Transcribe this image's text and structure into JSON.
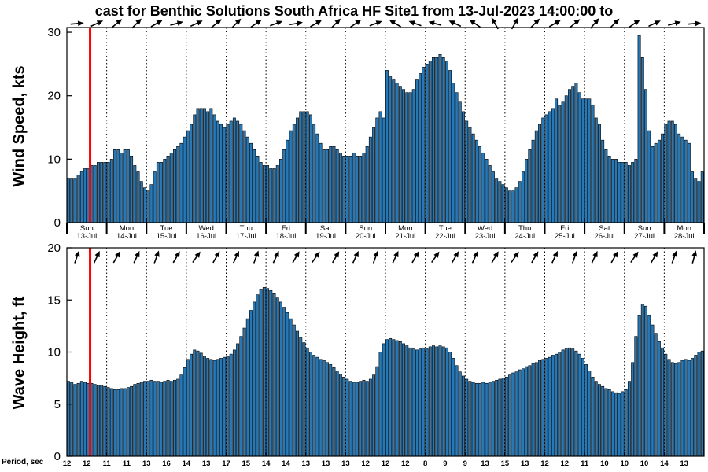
{
  "title": "cast for Benthic Solutions South Africa HF Site1 from 13-Jul-2023 14:00:00 to",
  "colors": {
    "bar_fill": "#2878b5",
    "bar_edge": "#000000",
    "now_line": "#ff0000",
    "first_day_label": "#cc0000",
    "gridline": "#000000"
  },
  "x_axis": {
    "total_hours": 384,
    "days": [
      {
        "weekday": "Sun",
        "date": "13-Jul"
      },
      {
        "weekday": "Mon",
        "date": "14-Jul"
      },
      {
        "weekday": "Tue",
        "date": "15-Jul"
      },
      {
        "weekday": "Wed",
        "date": "16-Jul"
      },
      {
        "weekday": "Thu",
        "date": "17-Jul"
      },
      {
        "weekday": "Fri",
        "date": "18-Jul"
      },
      {
        "weekday": "Sat",
        "date": "19-Jul"
      },
      {
        "weekday": "Sun",
        "date": "20-Jul"
      },
      {
        "weekday": "Mon",
        "date": "21-Jul"
      },
      {
        "weekday": "Tue",
        "date": "22-Jul"
      },
      {
        "weekday": "Wed",
        "date": "23-Jul"
      },
      {
        "weekday": "Thu",
        "date": "24-Jul"
      },
      {
        "weekday": "Fri",
        "date": "25-Jul"
      },
      {
        "weekday": "Sat",
        "date": "26-Jul"
      },
      {
        "weekday": "Sun",
        "date": "27-Jul"
      },
      {
        "weekday": "Mon",
        "date": "28-Jul"
      }
    ]
  },
  "period_axis": {
    "label": "Period, sec",
    "values": [
      12,
      12,
      11,
      11,
      13,
      16,
      14,
      13,
      17,
      15,
      14,
      14,
      13,
      13,
      13,
      12,
      12,
      12,
      8,
      9,
      9,
      13,
      15,
      13,
      12,
      12,
      11,
      10,
      10,
      10,
      14,
      13
    ]
  },
  "chart_data": [
    {
      "type": "bar",
      "panel": "wind",
      "ylabel": "Wind Speed, kts",
      "ylim": [
        0,
        30.75
      ],
      "yticks": [
        0,
        10,
        20,
        30
      ],
      "hours_per_bar": 2,
      "now_hour": 14,
      "values": [
        7,
        7,
        7,
        7.5,
        8,
        8.5,
        8.5,
        9,
        9,
        9.5,
        9.5,
        9.5,
        9.5,
        10,
        11.5,
        11.5,
        11,
        11.5,
        11.5,
        10.5,
        9,
        8,
        6.5,
        5.5,
        5,
        6,
        8,
        9.5,
        9.5,
        10,
        10.5,
        11,
        11.5,
        12,
        12.5,
        13.5,
        14.5,
        15.5,
        17,
        18,
        18,
        18,
        17.5,
        18,
        17,
        16,
        15.5,
        15,
        15.5,
        16,
        16.5,
        16,
        15.5,
        14.5,
        13.5,
        12.5,
        11.5,
        10.5,
        9.5,
        9,
        9,
        8.5,
        8.5,
        9,
        10,
        11.5,
        13,
        14.5,
        15.5,
        16.5,
        17.5,
        17.5,
        17.5,
        17,
        15.5,
        14,
        12.5,
        11.5,
        11.5,
        12,
        12,
        11.5,
        11,
        10.5,
        10.5,
        10.5,
        11,
        10.5,
        10.5,
        11,
        12,
        13.5,
        15,
        16.5,
        17.5,
        16.5,
        24,
        23,
        22.5,
        22,
        21.5,
        21,
        20.5,
        20.5,
        21,
        22.5,
        23.5,
        24.5,
        25,
        25.5,
        26,
        26,
        26.5,
        26,
        25.5,
        24,
        22,
        20.5,
        19,
        17.5,
        16,
        15,
        14,
        13,
        12,
        11,
        10,
        9,
        8,
        7,
        6.5,
        6,
        5.5,
        5,
        5,
        5.5,
        6.5,
        8,
        10,
        11.5,
        13,
        14.5,
        15.5,
        16.5,
        17,
        17.5,
        18,
        19.5,
        18.5,
        19,
        20,
        21,
        21.5,
        22,
        20.5,
        19.5,
        19.5,
        19.5,
        18.5,
        16.5,
        15.5,
        13,
        11.5,
        10.5,
        10,
        10,
        9.5,
        9.5,
        9.5,
        9,
        9.5,
        10,
        29.5,
        26,
        21,
        14.5,
        12,
        12.5,
        13,
        14,
        15.5,
        16,
        16,
        15.5,
        14,
        13.5,
        13,
        12.5,
        8,
        7,
        6.5,
        8
      ],
      "arrows_deg": [
        5,
        25,
        40,
        45,
        30,
        15,
        25,
        40,
        45,
        35,
        20,
        10,
        30,
        45,
        35,
        20,
        150,
        160,
        165,
        155,
        145,
        120,
        60,
        45,
        30,
        40,
        50,
        45,
        35,
        25,
        15,
        5
      ]
    },
    {
      "type": "bar",
      "panel": "wave",
      "ylabel": "Wave Height, ft",
      "ylim": [
        0,
        20
      ],
      "yticks": [
        0,
        5,
        10,
        15,
        20
      ],
      "hours_per_bar": 2,
      "now_hour": 14,
      "values": [
        7.2,
        7.1,
        6.9,
        7,
        7.2,
        7.1,
        7,
        7,
        6.9,
        6.8,
        6.8,
        6.7,
        6.6,
        6.5,
        6.4,
        6.4,
        6.5,
        6.5,
        6.6,
        6.7,
        6.9,
        7,
        7.1,
        7.2,
        7.2,
        7.3,
        7.2,
        7.2,
        7.1,
        7.2,
        7.3,
        7.2,
        7.3,
        7.4,
        7.8,
        8.5,
        9.3,
        9.8,
        10.2,
        10.1,
        9.9,
        9.6,
        9.4,
        9.3,
        9.2,
        9.3,
        9.4,
        9.5,
        9.6,
        9.8,
        10.2,
        10.8,
        11.5,
        12.3,
        13.2,
        14,
        14.8,
        15.5,
        16,
        16.2,
        16.1,
        15.9,
        15.6,
        15.2,
        14.8,
        14.3,
        13.8,
        13.2,
        12.6,
        12,
        11.4,
        10.9,
        10.4,
        10,
        9.7,
        9.5,
        9.3,
        9.2,
        9,
        8.8,
        8.5,
        8.2,
        7.9,
        7.6,
        7.4,
        7.2,
        7.1,
        7.1,
        7.2,
        7.3,
        7.2,
        7.4,
        7.8,
        8.6,
        10,
        10.8,
        11.2,
        11.3,
        11.2,
        11.1,
        11,
        10.8,
        10.6,
        10.4,
        10.3,
        10.2,
        10.3,
        10.4,
        10.3,
        10.5,
        10.6,
        10.5,
        10.6,
        10.5,
        10.4,
        10,
        9.4,
        8.7,
        8.1,
        7.7,
        7.4,
        7.2,
        7.1,
        7,
        7,
        7.1,
        7,
        7.1,
        7.2,
        7.3,
        7.4,
        7.5,
        7.6,
        7.8,
        8,
        8.1,
        8.3,
        8.4,
        8.6,
        8.7,
        8.9,
        9,
        9.2,
        9.3,
        9.4,
        9.5,
        9.7,
        9.8,
        10,
        10.2,
        10.3,
        10.4,
        10.3,
        10.1,
        9.8,
        9.4,
        8.8,
        8.2,
        7.6,
        7.2,
        6.9,
        6.7,
        6.5,
        6.4,
        6.2,
        6.1,
        6,
        6.2,
        6.4,
        7.2,
        9,
        11.5,
        13.5,
        14.6,
        14.4,
        13.5,
        12.6,
        11.8,
        11,
        10.4,
        9.8,
        9.3,
        9,
        8.9,
        9,
        9.2,
        9.3,
        9.2,
        9.4,
        9.7,
        10,
        10.1
      ],
      "arrows_deg": [
        70,
        65,
        60,
        65,
        70,
        60,
        55,
        60,
        65,
        70,
        65,
        60,
        55,
        60,
        65,
        70,
        65,
        60,
        55,
        60,
        65,
        60,
        55,
        60,
        65,
        70,
        65,
        60,
        55,
        60,
        70,
        75
      ]
    }
  ]
}
